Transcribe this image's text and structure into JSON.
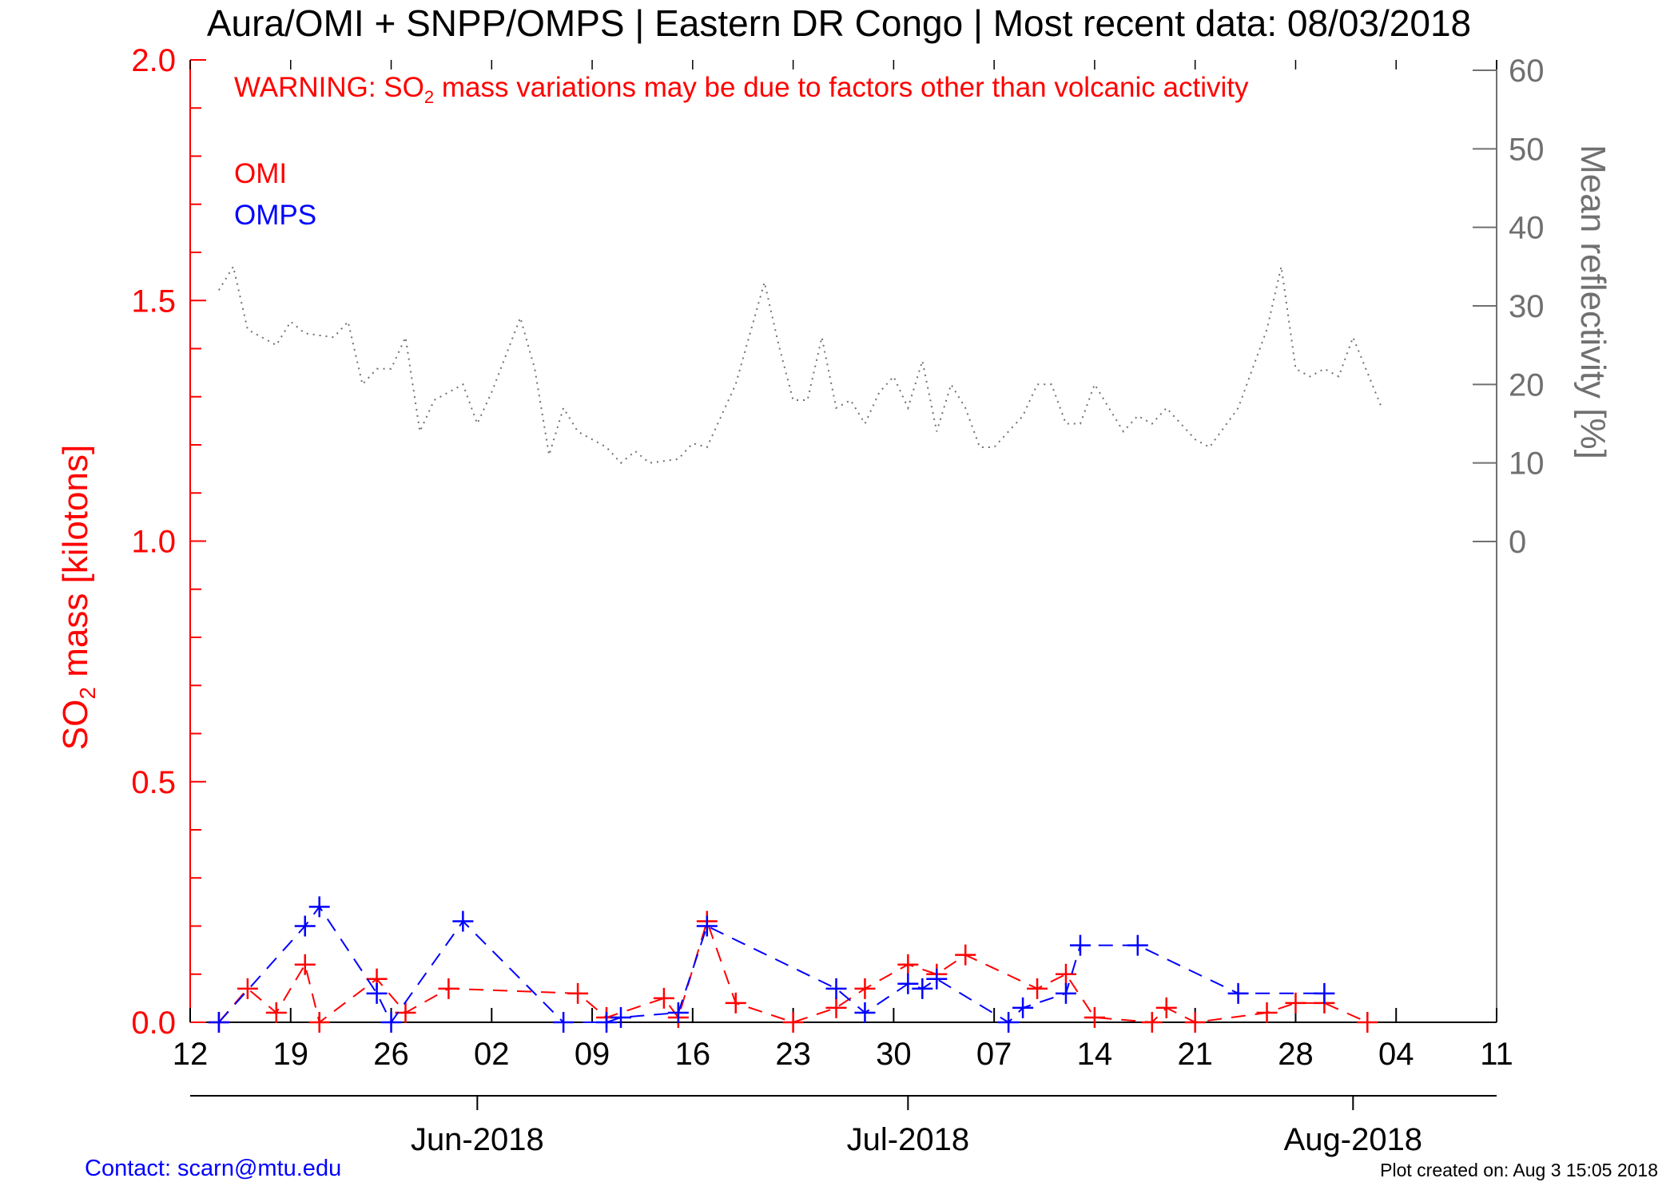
{
  "title": "Aura/OMI + SNPP/OMPS | Eastern DR Congo | Most recent data: 08/03/2018",
  "warning": {
    "prefix": "WARNING: SO",
    "sub": "2",
    "suffix": " mass variations may be due to factors other than volcanic activity"
  },
  "footer": {
    "contact": "Contact: scarn@mtu.edu",
    "created": "Plot created on: Aug  3 15:05 2018"
  },
  "colors": {
    "omi": "#ff0000",
    "omps": "#0000ff",
    "reflectivity": "#707070",
    "axis": "#000000"
  },
  "chart_data": {
    "type": "line",
    "title": "Aura/OMI + SNPP/OMPS | Eastern DR Congo | Most recent data: 08/03/2018",
    "ylabel": {
      "prefix": "SO",
      "sub": "2",
      "suffix": " mass [kilotons]"
    },
    "y2label": "Mean reflectivity [%]",
    "x_day_ticks": [
      "12",
      "19",
      "26",
      "02",
      "09",
      "16",
      "23",
      "30",
      "07",
      "14",
      "21",
      "28",
      "04",
      "11"
    ],
    "x_month_ticks": [
      "Jun-2018",
      "Jul-2018",
      "Aug-2018"
    ],
    "xlim": [
      "2018-05-12",
      "2018-08-11"
    ],
    "ylim": [
      0,
      2.0
    ],
    "y_ticks": [
      "0.0",
      "0.5",
      "1.0",
      "1.5",
      "2.0"
    ],
    "y2_ticks": [
      "0",
      "10",
      "20",
      "30",
      "40",
      "50",
      "60"
    ],
    "y2lim": [
      0,
      60
    ],
    "grid": false,
    "legend": [
      "OMI",
      "OMPS"
    ],
    "series": [
      {
        "name": "OMI",
        "values": [
          [
            "2018-05-14",
            0.0
          ],
          [
            "2018-05-16",
            0.07
          ],
          [
            "2018-05-18",
            0.02
          ],
          [
            "2018-05-20",
            0.12
          ],
          [
            "2018-05-21",
            0.0
          ],
          [
            "2018-05-25",
            0.09
          ],
          [
            "2018-05-27",
            0.02
          ],
          [
            "2018-05-30",
            0.07
          ],
          [
            "2018-06-08",
            0.06
          ],
          [
            "2018-06-10",
            0.01
          ],
          [
            "2018-06-14",
            0.05
          ],
          [
            "2018-06-15",
            0.01
          ],
          [
            "2018-06-17",
            0.21
          ],
          [
            "2018-06-19",
            0.04
          ],
          [
            "2018-06-23",
            0.0
          ],
          [
            "2018-06-26",
            0.03
          ],
          [
            "2018-06-28",
            0.07
          ],
          [
            "2018-07-01",
            0.12
          ],
          [
            "2018-07-03",
            0.1
          ],
          [
            "2018-07-05",
            0.14
          ],
          [
            "2018-07-10",
            0.07
          ],
          [
            "2018-07-12",
            0.1
          ],
          [
            "2018-07-14",
            0.01
          ],
          [
            "2018-07-18",
            0.0
          ],
          [
            "2018-07-19",
            0.03
          ],
          [
            "2018-07-21",
            0.0
          ],
          [
            "2018-07-26",
            0.02
          ],
          [
            "2018-07-28",
            0.04
          ],
          [
            "2018-07-30",
            0.04
          ],
          [
            "2018-08-02",
            0.0
          ]
        ]
      },
      {
        "name": "OMPS",
        "values": [
          [
            "2018-05-14",
            0.0
          ],
          [
            "2018-05-20",
            0.2
          ],
          [
            "2018-05-21",
            0.24
          ],
          [
            "2018-05-25",
            0.06
          ],
          [
            "2018-05-26",
            0.0
          ],
          [
            "2018-05-31",
            0.21
          ],
          [
            "2018-06-07",
            0.0
          ],
          [
            "2018-06-10",
            0.0
          ],
          [
            "2018-06-11",
            0.01
          ],
          [
            "2018-06-15",
            0.02
          ],
          [
            "2018-06-17",
            0.2
          ],
          [
            "2018-06-26",
            0.07
          ],
          [
            "2018-06-28",
            0.02
          ],
          [
            "2018-07-01",
            0.08
          ],
          [
            "2018-07-02",
            0.07
          ],
          [
            "2018-07-03",
            0.09
          ],
          [
            "2018-07-08",
            0.0
          ],
          [
            "2018-07-09",
            0.03
          ],
          [
            "2018-07-12",
            0.06
          ],
          [
            "2018-07-13",
            0.16
          ],
          [
            "2018-07-17",
            0.16
          ],
          [
            "2018-07-24",
            0.06
          ],
          [
            "2018-07-30",
            0.06
          ]
        ]
      },
      {
        "name": "Mean reflectivity",
        "axis": "right",
        "values": [
          [
            "2018-05-14",
            32
          ],
          [
            "2018-05-15",
            35
          ],
          [
            "2018-05-16",
            27
          ],
          [
            "2018-05-18",
            25
          ],
          [
            "2018-05-19",
            28
          ],
          [
            "2018-05-20",
            26.5
          ],
          [
            "2018-05-22",
            26
          ],
          [
            "2018-05-23",
            28
          ],
          [
            "2018-05-24",
            20
          ],
          [
            "2018-05-25",
            22
          ],
          [
            "2018-05-26",
            22
          ],
          [
            "2018-05-27",
            26
          ],
          [
            "2018-05-28",
            14
          ],
          [
            "2018-05-29",
            18
          ],
          [
            "2018-05-31",
            20
          ],
          [
            "2018-06-01",
            15
          ],
          [
            "2018-06-02",
            19
          ],
          [
            "2018-06-04",
            28.5
          ],
          [
            "2018-06-05",
            22
          ],
          [
            "2018-06-06",
            11
          ],
          [
            "2018-06-07",
            17
          ],
          [
            "2018-06-08",
            14
          ],
          [
            "2018-06-10",
            12
          ],
          [
            "2018-06-11",
            10
          ],
          [
            "2018-06-12",
            11.5
          ],
          [
            "2018-06-13",
            10
          ],
          [
            "2018-06-15",
            10.5
          ],
          [
            "2018-06-16",
            12.5
          ],
          [
            "2018-06-17",
            12
          ],
          [
            "2018-06-19",
            20
          ],
          [
            "2018-06-21",
            33
          ],
          [
            "2018-06-22",
            25
          ],
          [
            "2018-06-23",
            18
          ],
          [
            "2018-06-24",
            18
          ],
          [
            "2018-06-25",
            26
          ],
          [
            "2018-06-26",
            17
          ],
          [
            "2018-06-27",
            18
          ],
          [
            "2018-06-28",
            15
          ],
          [
            "2018-06-29",
            19
          ],
          [
            "2018-06-30",
            21
          ],
          [
            "2018-07-01",
            17
          ],
          [
            "2018-07-02",
            23
          ],
          [
            "2018-07-03",
            14
          ],
          [
            "2018-07-04",
            20
          ],
          [
            "2018-07-05",
            17
          ],
          [
            "2018-07-06",
            12
          ],
          [
            "2018-07-07",
            12
          ],
          [
            "2018-07-08",
            14
          ],
          [
            "2018-07-09",
            16
          ],
          [
            "2018-07-10",
            20
          ],
          [
            "2018-07-11",
            20
          ],
          [
            "2018-07-12",
            15
          ],
          [
            "2018-07-13",
            15
          ],
          [
            "2018-07-14",
            20
          ],
          [
            "2018-07-16",
            14
          ],
          [
            "2018-07-17",
            16
          ],
          [
            "2018-07-18",
            15
          ],
          [
            "2018-07-19",
            17
          ],
          [
            "2018-07-21",
            13
          ],
          [
            "2018-07-22",
            12
          ],
          [
            "2018-07-24",
            17
          ],
          [
            "2018-07-26",
            27
          ],
          [
            "2018-07-27",
            35
          ],
          [
            "2018-07-28",
            22
          ],
          [
            "2018-07-29",
            21
          ],
          [
            "2018-07-30",
            22
          ],
          [
            "2018-07-31",
            21
          ],
          [
            "2018-08-01",
            26
          ],
          [
            "2018-08-03",
            17
          ]
        ]
      }
    ]
  }
}
